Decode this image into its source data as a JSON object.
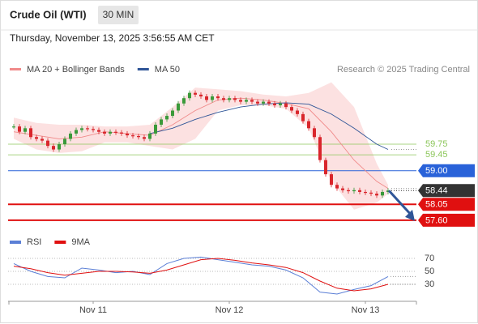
{
  "header": {
    "title": "Crude Oil (WTI)",
    "interval": "30 MIN",
    "datetime": "Thursday, November 13, 2025 3:56:55 AM CET"
  },
  "chart_data": [
    {
      "type": "candlestick",
      "credit": "Research © 2025 Trading Central",
      "xlim": [
        -15,
        57
      ],
      "ylim": [
        57.3,
        61.65
      ],
      "up_color": "#3a9a3a",
      "down_color": "#d9262c",
      "x": [
        -14,
        -13,
        -12,
        -11,
        -10,
        -9,
        -8,
        -7,
        -6,
        -5,
        -4,
        -3,
        -2,
        -1,
        0,
        1,
        2,
        3,
        4,
        5,
        6,
        7,
        8,
        9,
        10,
        11,
        12,
        13,
        14,
        15,
        16,
        17,
        18,
        19,
        20,
        21,
        22,
        23,
        24,
        25,
        26,
        27,
        28,
        29,
        30,
        31,
        32,
        33,
        34,
        35,
        36,
        37,
        38,
        39,
        40,
        41,
        42,
        43,
        44,
        45,
        46,
        47,
        48,
        49,
        50,
        51,
        52
      ],
      "close": [
        60.25,
        60.1,
        60.2,
        59.95,
        59.9,
        59.85,
        59.7,
        59.6,
        59.75,
        59.9,
        60.05,
        60.15,
        60.2,
        60.18,
        60.15,
        60.1,
        60.05,
        60.1,
        60.08,
        60.05,
        60.0,
        59.98,
        59.95,
        59.9,
        60.05,
        60.3,
        60.45,
        60.55,
        60.7,
        60.9,
        61.05,
        61.2,
        61.15,
        61.1,
        61.0,
        61.1,
        61.05,
        61.0,
        61.05,
        61.0,
        60.95,
        61.0,
        60.95,
        60.9,
        60.95,
        60.9,
        60.85,
        60.9,
        60.8,
        60.7,
        60.6,
        60.4,
        60.2,
        59.95,
        59.3,
        58.9,
        58.6,
        58.5,
        58.45,
        58.42,
        58.45,
        58.4,
        58.38,
        58.35,
        58.3,
        58.4,
        58.44
      ],
      "series": [
        {
          "name": "MA 20 + Bollinger Bands",
          "color": "#f08a8a",
          "band_color": "#fbd9d9",
          "x": [
            -14,
            -10,
            -6,
            -2,
            2,
            6,
            10,
            14,
            18,
            22,
            26,
            30,
            34,
            38,
            42,
            46,
            50,
            52
          ],
          "values": [
            60.1,
            60.0,
            59.9,
            59.95,
            60.1,
            60.05,
            60.0,
            60.3,
            60.7,
            61.0,
            61.05,
            61.0,
            60.9,
            60.75,
            60.1,
            59.3,
            58.7,
            58.5
          ],
          "upper": [
            60.5,
            60.35,
            60.3,
            60.3,
            60.25,
            60.25,
            60.3,
            60.8,
            61.35,
            61.3,
            61.25,
            61.15,
            61.1,
            61.2,
            61.5,
            60.8,
            59.2,
            58.6
          ],
          "lower": [
            59.9,
            59.6,
            59.5,
            59.55,
            59.8,
            59.8,
            59.7,
            59.6,
            59.9,
            60.7,
            60.85,
            60.85,
            60.75,
            60.2,
            58.7,
            57.9,
            58.1,
            58.35
          ]
        },
        {
          "name": "MA 50",
          "color": "#2f5597",
          "x": [
            10,
            14,
            18,
            22,
            26,
            30,
            34,
            38,
            42,
            46,
            50,
            52
          ],
          "values": [
            60.05,
            60.2,
            60.45,
            60.65,
            60.8,
            60.88,
            60.92,
            60.88,
            60.6,
            60.2,
            59.75,
            59.6
          ]
        }
      ],
      "levels": {
        "values": [
          59.75,
          59.45,
          59,
          58.44,
          58.05,
          57.6
        ],
        "value_labels": [
          "59.75",
          "59.45",
          "59.00",
          "58.44",
          "58.05",
          "57.60"
        ],
        "colors": [
          "#8cc65a",
          "#8cc65a",
          "#2962d9",
          "#333333",
          "#e01010",
          "#e01010"
        ],
        "boxed": [
          false,
          false,
          true,
          true,
          true,
          true
        ],
        "dotted": [
          false,
          false,
          false,
          true,
          false,
          false
        ]
      }
    },
    {
      "type": "line",
      "xlim": [
        -15,
        57
      ],
      "ylim": [
        6.25,
        81.25
      ],
      "yticks": [
        30,
        50,
        70
      ],
      "xticks": [
        {
          "value": 0,
          "label": "Nov 11"
        },
        {
          "value": 24,
          "label": "Nov 12"
        },
        {
          "value": 48,
          "label": "Nov 13"
        }
      ],
      "x": [
        -14,
        -11,
        -8,
        -5,
        -2,
        1,
        4,
        7,
        10,
        13,
        16,
        19,
        22,
        25,
        28,
        31,
        34,
        37,
        40,
        43,
        46,
        49,
        52
      ],
      "series": [
        {
          "name": "RSI",
          "color": "#5b7fd6",
          "values": [
            62,
            50,
            42,
            40,
            55,
            52,
            48,
            50,
            45,
            62,
            70,
            72,
            68,
            64,
            60,
            58,
            52,
            40,
            18,
            15,
            22,
            28,
            42
          ]
        },
        {
          "name": "9MA",
          "color": "#e01010",
          "values": [
            58,
            54,
            48,
            44,
            47,
            50,
            50,
            49,
            47,
            52,
            60,
            68,
            70,
            67,
            63,
            60,
            56,
            48,
            35,
            24,
            20,
            23,
            30
          ]
        }
      ]
    }
  ]
}
